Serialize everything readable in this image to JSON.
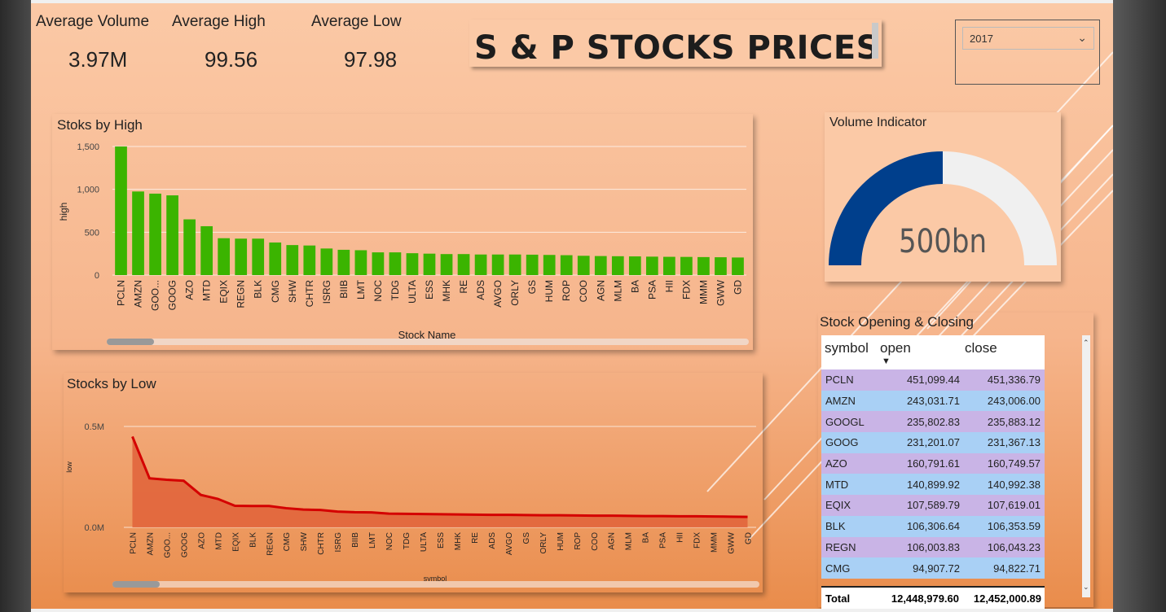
{
  "kpis": [
    {
      "label": "Average Volume",
      "value": "3.97M"
    },
    {
      "label": "Average High",
      "value": "99.56"
    },
    {
      "label": "Average Low",
      "value": "97.98"
    }
  ],
  "title": "S & P STOCKS PRICES",
  "slicer": {
    "value": "2017"
  },
  "high_chart": {
    "title": "Stoks by High",
    "ylabel": "high",
    "xlabel": "Stock Name",
    "yticks": [
      "1,500",
      "1,000",
      "500",
      "0"
    ]
  },
  "low_chart": {
    "title": "Stocks by Low",
    "ylabel": "low",
    "xlabel": "symbol",
    "yticks": [
      "0.5M",
      "0.0M"
    ]
  },
  "gauge": {
    "title": "Volume Indicator",
    "value_label": "500bn",
    "fill_fraction": 0.5,
    "fill_color": "#003f8c",
    "track_color": "#f0f0f0"
  },
  "table": {
    "title": "Stock Opening & Closing",
    "columns": [
      "symbol",
      "open",
      "close"
    ],
    "rows": [
      [
        "PCLN",
        "451,099.44",
        "451,336.79"
      ],
      [
        "AMZN",
        "243,031.71",
        "243,006.00"
      ],
      [
        "GOOGL",
        "235,802.83",
        "235,883.12"
      ],
      [
        "GOOG",
        "231,201.07",
        "231,367.13"
      ],
      [
        "AZO",
        "160,791.61",
        "160,749.57"
      ],
      [
        "MTD",
        "140,899.92",
        "140,992.38"
      ],
      [
        "EQIX",
        "107,589.79",
        "107,619.01"
      ],
      [
        "BLK",
        "106,306.64",
        "106,353.59"
      ],
      [
        "REGN",
        "106,003.83",
        "106,043.23"
      ],
      [
        "CMG",
        "94,907.72",
        "94,822.71"
      ]
    ],
    "total": [
      "Total",
      "12,448,979.60",
      "12,452,000.89"
    ]
  },
  "colors": {
    "bar": "#3bb400",
    "line": "#d40000",
    "area": "#e0623a"
  },
  "chart_data": [
    {
      "type": "bar",
      "title": "Stoks by High",
      "xlabel": "Stock Name",
      "ylabel": "high",
      "ylim": [
        0,
        1500
      ],
      "categories": [
        "PCLN",
        "AMZN",
        "GOO...",
        "GOOG",
        "AZO",
        "MTD",
        "EQIX",
        "REGN",
        "BLK",
        "CMG",
        "SHW",
        "CHTR",
        "ISRG",
        "BIIB",
        "LMT",
        "NOC",
        "TDG",
        "ULTA",
        "ESS",
        "MHK",
        "RE",
        "ADS",
        "AVGO",
        "ORLY",
        "GS",
        "HUM",
        "ROP",
        "COO",
        "AGN",
        "MLM",
        "BA",
        "PSA",
        "HII",
        "FDX",
        "MMM",
        "GWW",
        "GD"
      ],
      "values": [
        1500,
        975,
        950,
        930,
        650,
        570,
        430,
        425,
        425,
        380,
        350,
        345,
        310,
        295,
        290,
        265,
        265,
        255,
        250,
        245,
        245,
        240,
        240,
        240,
        238,
        235,
        232,
        225,
        222,
        220,
        218,
        215,
        213,
        212,
        210,
        208,
        205
      ]
    },
    {
      "type": "area",
      "title": "Stocks by Low",
      "xlabel": "symbol",
      "ylabel": "low",
      "ylim": [
        0,
        500000
      ],
      "categories": [
        "PCLN",
        "AMZN",
        "GOO...",
        "GOOG",
        "AZO",
        "MTD",
        "EQIX",
        "BLK",
        "REGN",
        "CMG",
        "SHW",
        "CHTR",
        "ISRG",
        "BIIB",
        "LMT",
        "NOC",
        "TDG",
        "ULTA",
        "ESS",
        "MHK",
        "RE",
        "ADS",
        "AVGO",
        "GS",
        "ORLY",
        "HUM",
        "ROP",
        "COO",
        "AGN",
        "MLM",
        "BA",
        "PSA",
        "HII",
        "FDX",
        "MMM",
        "GWW",
        "GD"
      ],
      "values": [
        450000,
        243000,
        236000,
        231000,
        161000,
        141000,
        107000,
        106000,
        106000,
        95000,
        88000,
        86000,
        78000,
        75000,
        74000,
        68000,
        67000,
        66000,
        65000,
        64000,
        63000,
        62000,
        62000,
        61000,
        60000,
        60000,
        59000,
        58000,
        58000,
        57000,
        56000,
        56000,
        55000,
        55000,
        54000,
        53000,
        52000
      ]
    }
  ]
}
